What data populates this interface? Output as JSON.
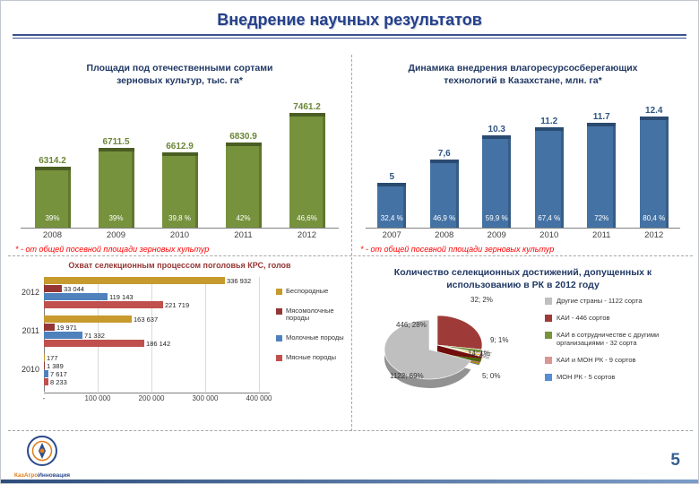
{
  "slide": {
    "title": "Внедрение научных результатов",
    "page_number": "5",
    "logo": {
      "part1": "КазАгро",
      "part2": "Инновация"
    }
  },
  "chart_data": [
    {
      "type": "bar",
      "title_line1": "Площади под отечественными сортами",
      "title_line2": "зерновых культур, тыс. га*",
      "categories": [
        "2008",
        "2009",
        "2010",
        "2011",
        "2012"
      ],
      "values": [
        6314.2,
        6711.5,
        6612.9,
        6830.9,
        7461.2
      ],
      "value_labels": [
        "6314.2",
        "6711.5",
        "6612.9",
        "6830.9",
        "7461.2"
      ],
      "pct_labels": [
        "39%",
        "39%",
        "39,8 %",
        "42%",
        "46,6%"
      ],
      "ylim": [
        5000,
        7700
      ],
      "bar_color": "#76923c",
      "cap_color": "#4a5d23",
      "label_color": "#6a8637",
      "footnote": "* - от общей посевной площади зерновых культур"
    },
    {
      "type": "bar",
      "title_line1": "Динамика внедрения влагоресурсосберегающих",
      "title_line2": "технологий в Казахстане, млн. га*",
      "categories": [
        "2007",
        "2008",
        "2009",
        "2010",
        "2011",
        "2012"
      ],
      "values": [
        5,
        7.6,
        10.3,
        11.2,
        11.7,
        12.4
      ],
      "value_labels": [
        "5",
        "7,6",
        "10.3",
        "11.2",
        "11.7",
        "12.4"
      ],
      "pct_labels": [
        "32,4 %",
        "46,9 %",
        "59,9 %",
        "67,4 %",
        "72%",
        "80,4 %"
      ],
      "ylim": [
        0,
        14
      ],
      "bar_color": "#4472a4",
      "cap_color": "#2a4a70",
      "label_color": "#2f5580",
      "footnote": "* - от общей посевной площади зерновых культур"
    },
    {
      "type": "hbar",
      "title": "Охват селекционным процессом поголовья КРС, голов",
      "categories": [
        "2012",
        "2011",
        "2010"
      ],
      "series": [
        {
          "name": "Беспородные",
          "color": "#c79a2e",
          "values": [
            336932,
            163637,
            177
          ],
          "labels": [
            "336 932",
            "163 637",
            "177"
          ]
        },
        {
          "name": "Мясомолочные породы",
          "color": "#943634",
          "values": [
            33044,
            19971,
            1389
          ],
          "labels": [
            "33 044",
            "19 971",
            "1 389"
          ]
        },
        {
          "name": "Молочные породы",
          "color": "#4f81bd",
          "values": [
            119143,
            71332,
            7617
          ],
          "labels": [
            "119 143",
            "71 332",
            "7 617"
          ]
        },
        {
          "name": "Мясные породы",
          "color": "#c0504d",
          "values": [
            221719,
            186142,
            8233
          ],
          "labels": [
            "221 719",
            "186 142",
            "8 233"
          ]
        }
      ],
      "xlim": [
        0,
        400000
      ],
      "x_ticks": [
        "-",
        "100 000",
        "200 000",
        "300 000",
        "400 000"
      ]
    },
    {
      "type": "pie",
      "title_line1": "Количество селекционных достижений, допущенных к",
      "title_line2": "использованию в РК в 2012 году",
      "slices": [
        {
          "label": "446; 28%",
          "value": 446,
          "color": "#9e3b38"
        },
        {
          "label": "32; 2%",
          "value": 32,
          "color": "#77933c"
        },
        {
          "label": "9; 1%",
          "value": 9,
          "color": "#d99694"
        },
        {
          "label": "14; 1%",
          "value": 14,
          "color": "#d9b200"
        },
        {
          "label": "5; 0%",
          "value": 5,
          "color": "#558ed5",
          "exploded": false
        },
        {
          "label": "1122; 69%",
          "value": 1122,
          "color": "#bfbfbf",
          "exploded": true
        }
      ],
      "legend": [
        {
          "label": "Другие страны - 1122 сорта",
          "color": "#bfbfbf"
        },
        {
          "label": "КАИ - 446 сортов",
          "color": "#9e3b38"
        },
        {
          "label": "КАИ в сотрудничестве с другими организациями - 32 сорта",
          "color": "#77933c"
        },
        {
          "label": "КАИ и МОН РК - 9 сортов",
          "color": "#d99694"
        },
        {
          "label": "МОН РК - 5 сортов",
          "color": "#558ed5"
        }
      ]
    }
  ]
}
